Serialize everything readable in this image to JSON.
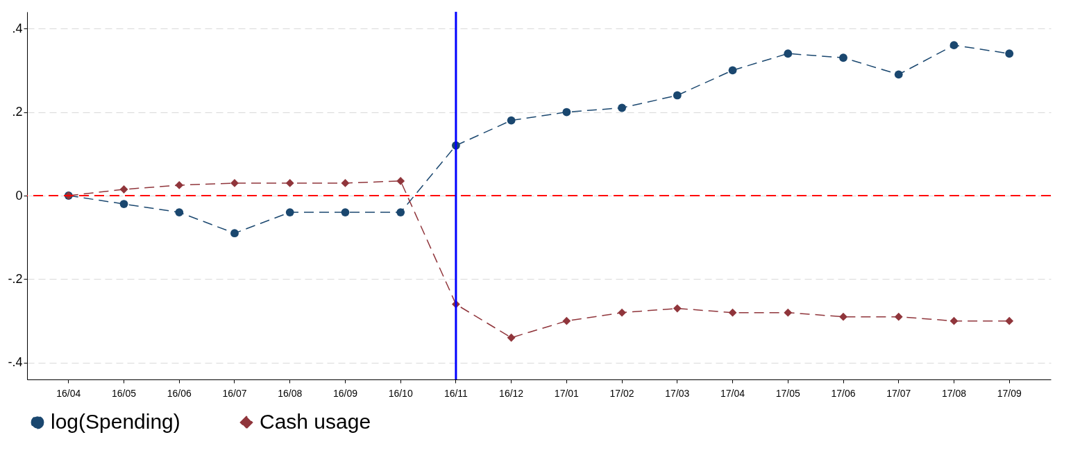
{
  "chart_data": {
    "type": "line",
    "categories": [
      "16/04",
      "16/05",
      "16/06",
      "16/07",
      "16/08",
      "16/09",
      "16/10",
      "16/11",
      "16/12",
      "17/01",
      "17/02",
      "17/03",
      "17/04",
      "17/05",
      "17/06",
      "17/07",
      "17/08",
      "17/09"
    ],
    "series": [
      {
        "name": "log(Spending)",
        "color": "#1a476f",
        "marker": "circle",
        "line_style": "dashed",
        "values": [
          0,
          -0.02,
          -0.04,
          -0.09,
          -0.04,
          -0.04,
          -0.04,
          0.12,
          0.18,
          0.2,
          0.21,
          0.24,
          0.3,
          0.34,
          0.33,
          0.29,
          0.36,
          0.34
        ]
      },
      {
        "name": "Cash usage",
        "color": "#90353b",
        "marker": "diamond",
        "line_style": "dashed",
        "values": [
          0,
          0.015,
          0.025,
          0.03,
          0.03,
          0.03,
          0.035,
          -0.26,
          -0.34,
          -0.3,
          -0.28,
          -0.27,
          -0.28,
          -0.28,
          -0.29,
          -0.29,
          -0.3,
          -0.3
        ]
      }
    ],
    "ylim": [
      -0.44,
      0.44
    ],
    "yticks": [
      {
        "value": -0.4,
        "label": "-.4"
      },
      {
        "value": -0.2,
        "label": "-.2"
      },
      {
        "value": 0,
        "label": "0"
      },
      {
        "value": 0.2,
        "label": ".2"
      },
      {
        "value": 0.4,
        "label": ".4"
      }
    ],
    "grid": "y",
    "legend": "bottom",
    "ref_lines": [
      {
        "axis": "y",
        "value": 0,
        "color": "#ff0000",
        "line_style": "dashed"
      },
      {
        "axis": "x",
        "value": "16/11",
        "color": "#0000ff",
        "line_style": "solid"
      }
    ]
  }
}
